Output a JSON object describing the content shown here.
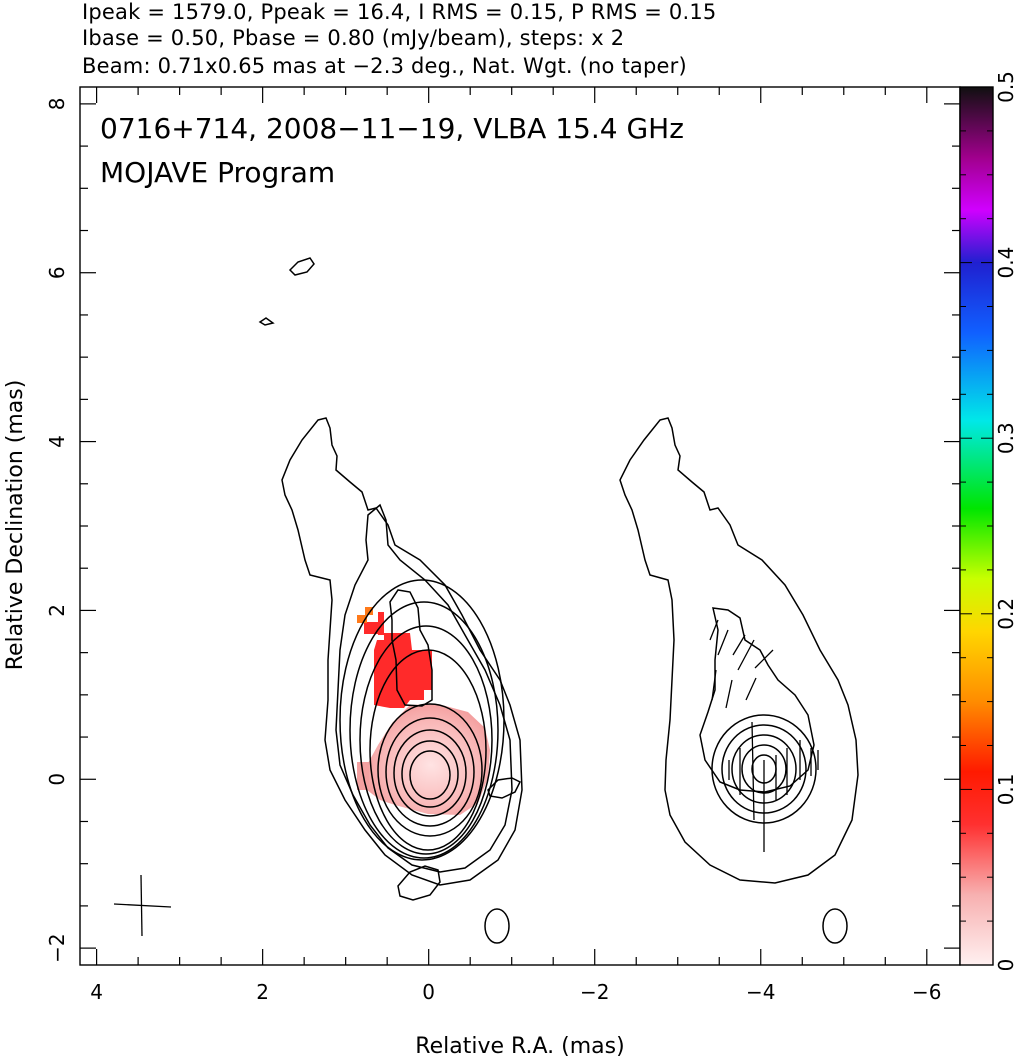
{
  "header": {
    "line1": "Ipeak = 1579.0, Ppeak = 16.4, I RMS = 0.15, P RMS = 0.15",
    "line2": "Ibase = 0.50, Pbase = 0.80 (mJy/beam), steps: x 2",
    "line3": "Beam: 0.71x0.65 mas at −2.3 deg., Nat. Wgt. (no taper)"
  },
  "chart_data": {
    "type": "heatmap",
    "title": "0716+714, 2008−11−19, VLBA 15.4 GHz",
    "subtitle": "MOJAVE Program",
    "xlabel": "Relative R.A. (mas)",
    "ylabel": "Relative Declination (mas)",
    "xlim": [
      4.2,
      -6.4
    ],
    "ylim": [
      -2.2,
      8.2
    ],
    "x_ticks": [
      4,
      2,
      0,
      -2,
      -4,
      -6
    ],
    "x_tick_labels": [
      "4",
      "2",
      "0",
      "−2",
      "−4",
      "−6"
    ],
    "y_ticks": [
      -2,
      0,
      2,
      4,
      6,
      8
    ],
    "y_tick_labels": [
      "−2",
      "0",
      "2",
      "4",
      "6",
      "8"
    ],
    "colorbar": {
      "range": [
        0,
        0.5
      ],
      "ticks": [
        0,
        0.1,
        0.2,
        0.3,
        0.4,
        0.5
      ],
      "tick_labels": [
        "0",
        "0.1",
        "0.2",
        "0.3",
        "0.4",
        "0.5"
      ]
    },
    "beam": {
      "major_mas": 0.71,
      "minor_mas": 0.65,
      "pa_deg": -2.3
    },
    "panels": [
      {
        "name": "left",
        "shows": "polarized intensity color + total intensity contours",
        "peak": [
          0,
          0
        ]
      },
      {
        "name": "right",
        "shows": "contours + EVPA ticks",
        "peak": [
          -4,
          0.1
        ]
      }
    ]
  },
  "colors": {
    "contour": "#000000",
    "pol_high": "#ff2a2a",
    "pol_low": "#f8c8c8"
  }
}
